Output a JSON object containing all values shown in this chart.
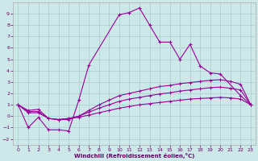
{
  "xlabel": "Windchill (Refroidissement éolien,°C)",
  "background_color": "#cce8e8",
  "grid_color": "#aacccc",
  "line_color": "#990099",
  "xlim": [
    -0.5,
    23.5
  ],
  "ylim": [
    -2.5,
    10
  ],
  "xticks": [
    0,
    1,
    2,
    3,
    4,
    5,
    6,
    7,
    8,
    9,
    10,
    11,
    12,
    13,
    14,
    15,
    16,
    17,
    18,
    19,
    20,
    21,
    22,
    23
  ],
  "yticks": [
    -2,
    -1,
    0,
    1,
    2,
    3,
    4,
    5,
    6,
    7,
    8,
    9
  ],
  "series1_x": [
    0,
    1,
    2,
    3,
    4,
    5,
    6,
    7,
    10,
    11,
    12,
    13,
    14,
    15,
    16,
    17,
    18,
    19,
    20,
    22,
    23
  ],
  "series1_y": [
    1.0,
    -1.0,
    -0.1,
    -1.2,
    -1.2,
    -1.3,
    1.4,
    4.5,
    8.9,
    9.1,
    9.5,
    8.0,
    6.5,
    6.5,
    5.0,
    6.3,
    4.4,
    3.8,
    3.7,
    1.8,
    1.0
  ],
  "series2_x": [
    0,
    1,
    2,
    3,
    4,
    5,
    6,
    7,
    8,
    9,
    10,
    11,
    12,
    13,
    14,
    15,
    16,
    17,
    18,
    19,
    20,
    21,
    22,
    23
  ],
  "series2_y": [
    1.0,
    0.5,
    0.6,
    -0.2,
    -0.3,
    -0.3,
    0.0,
    0.5,
    1.0,
    1.4,
    1.8,
    2.0,
    2.2,
    2.4,
    2.6,
    2.7,
    2.85,
    2.95,
    3.05,
    3.15,
    3.2,
    3.05,
    2.8,
    1.0
  ],
  "series3_x": [
    0,
    1,
    2,
    3,
    4,
    5,
    6,
    7,
    8,
    9,
    10,
    11,
    12,
    13,
    14,
    15,
    16,
    17,
    18,
    19,
    20,
    21,
    22,
    23
  ],
  "series3_y": [
    1.0,
    0.4,
    0.4,
    -0.2,
    -0.3,
    -0.2,
    0.0,
    0.35,
    0.7,
    1.0,
    1.3,
    1.5,
    1.65,
    1.8,
    1.95,
    2.05,
    2.2,
    2.3,
    2.4,
    2.5,
    2.55,
    2.45,
    2.3,
    1.0
  ],
  "series4_x": [
    0,
    1,
    2,
    3,
    4,
    5,
    6,
    7,
    8,
    9,
    10,
    11,
    12,
    13,
    14,
    15,
    16,
    17,
    18,
    19,
    20,
    21,
    22,
    23
  ],
  "series4_y": [
    1.0,
    0.3,
    0.3,
    -0.2,
    -0.3,
    -0.2,
    -0.1,
    0.1,
    0.3,
    0.5,
    0.7,
    0.85,
    1.0,
    1.1,
    1.2,
    1.3,
    1.4,
    1.5,
    1.55,
    1.6,
    1.65,
    1.6,
    1.5,
    1.0
  ]
}
